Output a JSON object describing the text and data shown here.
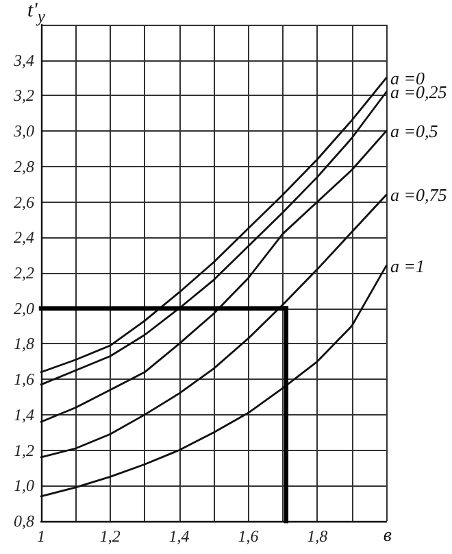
{
  "chart_data": {
    "type": "line",
    "xlabel": "в",
    "ylabel": "t'$_{y}$",
    "x": [
      1,
      1.1,
      1.2,
      1.3,
      1.4,
      1.5,
      1.6,
      1.7,
      1.8,
      1.9,
      2.0
    ],
    "series": [
      {
        "name": "a =0",
        "color": "#111111",
        "values": [
          1.64,
          1.71,
          1.79,
          1.93,
          2.09,
          2.26,
          2.45,
          2.64,
          2.84,
          3.06,
          3.3
        ]
      },
      {
        "name": "a =0,25",
        "color": "#111111",
        "values": [
          1.57,
          1.65,
          1.73,
          1.85,
          2.0,
          2.16,
          2.35,
          2.54,
          2.74,
          2.96,
          3.22
        ]
      },
      {
        "name": "a =0,5",
        "color": "#111111",
        "values": [
          1.36,
          1.44,
          1.54,
          1.64,
          1.8,
          1.97,
          2.17,
          2.42,
          2.6,
          2.78,
          3.0
        ]
      },
      {
        "name": "a =0,75",
        "color": "#111111",
        "values": [
          1.16,
          1.21,
          1.29,
          1.4,
          1.52,
          1.66,
          1.83,
          2.02,
          2.22,
          2.43,
          2.64
        ]
      },
      {
        "name": "a =1",
        "color": "#111111",
        "values": [
          0.94,
          0.99,
          1.05,
          1.12,
          1.2,
          1.3,
          1.41,
          1.55,
          1.7,
          1.9,
          2.24
        ]
      }
    ],
    "ref_lines": [
      {
        "axis": "y",
        "value": 2.0,
        "color": "#000000"
      },
      {
        "axis": "x",
        "value": 1.71,
        "color": "#000000"
      }
    ],
    "xlim": [
      1,
      2
    ],
    "ylim": [
      0.8,
      3.6
    ],
    "xticks": [
      1,
      {
        "value": 1.1,
        "label": null
      },
      {
        "value": 1.2,
        "label": "1,2"
      },
      {
        "value": 1.3,
        "label": null
      },
      {
        "value": 1.4,
        "label": "1,4"
      },
      {
        "value": 1.5,
        "label": null
      },
      {
        "value": 1.6,
        "label": "1,6"
      },
      {
        "value": 1.7,
        "label": null
      },
      {
        "value": 1.8,
        "label": "1,8"
      },
      {
        "value": 1.9,
        "label": null
      },
      {
        "value": 2.0,
        "label": null
      }
    ],
    "yticks": [
      {
        "value": 0.8,
        "label": "0,8"
      },
      {
        "value": 1.0,
        "label": "1,0"
      },
      {
        "value": 1.2,
        "label": "1,2"
      },
      {
        "value": 1.4,
        "label": "1,4"
      },
      {
        "value": 1.6,
        "label": "1,6"
      },
      {
        "value": 1.8,
        "label": "1,8"
      },
      {
        "value": 2.0,
        "label": "2,0"
      },
      {
        "value": 2.2,
        "label": "2,2"
      },
      {
        "value": 2.4,
        "label": "2,4"
      },
      {
        "value": 2.6,
        "label": "2,6"
      },
      {
        "value": 2.8,
        "label": "2,8"
      },
      {
        "value": 3.0,
        "label": "3,0"
      },
      {
        "value": 3.2,
        "label": "3,2"
      },
      {
        "value": 3.4,
        "label": "3,4"
      },
      {
        "value": 3.6,
        "label": null
      }
    ],
    "grid": true,
    "legend": false,
    "marker": "none",
    "line_style": "solid"
  }
}
